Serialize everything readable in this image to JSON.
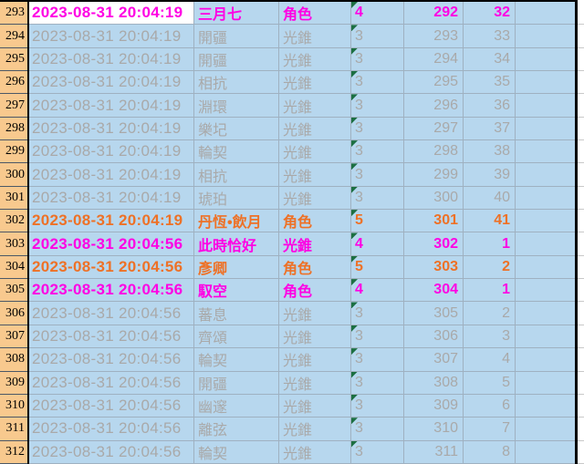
{
  "colors": {
    "cell_background": "#b7d7ee",
    "row_header_background": "#f8c98e",
    "gridline": "#9fb1c1",
    "text_gray": "#a9a9a9",
    "text_magenta_4star": "#ff00e4",
    "text_orange_5star": "#ee7126",
    "note_triangle_green": "#1c6f42",
    "active_cell_background": "#ffffff",
    "border_black": "#000000"
  },
  "table": {
    "rows": [
      {
        "row_number": "293",
        "timestamp": "2023-08-31 20:04:19",
        "name": "三月七",
        "category": "角色",
        "rarity": "4",
        "pull_no": "292",
        "pity": "32",
        "style": "magenta",
        "active_ts": true
      },
      {
        "row_number": "294",
        "timestamp": "2023-08-31 20:04:19",
        "name": "開疆",
        "category": "光錐",
        "rarity": "3",
        "pull_no": "293",
        "pity": "33",
        "style": "gray",
        "active_ts": false
      },
      {
        "row_number": "295",
        "timestamp": "2023-08-31 20:04:19",
        "name": "開疆",
        "category": "光錐",
        "rarity": "3",
        "pull_no": "294",
        "pity": "34",
        "style": "gray",
        "active_ts": false
      },
      {
        "row_number": "296",
        "timestamp": "2023-08-31 20:04:19",
        "name": "相抗",
        "category": "光錐",
        "rarity": "3",
        "pull_no": "295",
        "pity": "35",
        "style": "gray",
        "active_ts": false
      },
      {
        "row_number": "297",
        "timestamp": "2023-08-31 20:04:19",
        "name": "淵環",
        "category": "光錐",
        "rarity": "3",
        "pull_no": "296",
        "pity": "36",
        "style": "gray",
        "active_ts": false
      },
      {
        "row_number": "298",
        "timestamp": "2023-08-31 20:04:19",
        "name": "樂圮",
        "category": "光錐",
        "rarity": "3",
        "pull_no": "297",
        "pity": "37",
        "style": "gray",
        "active_ts": false
      },
      {
        "row_number": "299",
        "timestamp": "2023-08-31 20:04:19",
        "name": "輪契",
        "category": "光錐",
        "rarity": "3",
        "pull_no": "298",
        "pity": "38",
        "style": "gray",
        "active_ts": false
      },
      {
        "row_number": "300",
        "timestamp": "2023-08-31 20:04:19",
        "name": "相抗",
        "category": "光錐",
        "rarity": "3",
        "pull_no": "299",
        "pity": "39",
        "style": "gray",
        "active_ts": false
      },
      {
        "row_number": "301",
        "timestamp": "2023-08-31 20:04:19",
        "name": "琥珀",
        "category": "光錐",
        "rarity": "3",
        "pull_no": "300",
        "pity": "40",
        "style": "gray",
        "active_ts": false
      },
      {
        "row_number": "302",
        "timestamp": "2023-08-31 20:04:19",
        "name": "丹恆•飲月",
        "category": "角色",
        "rarity": "5",
        "pull_no": "301",
        "pity": "41",
        "style": "orange",
        "active_ts": false
      },
      {
        "row_number": "303",
        "timestamp": "2023-08-31 20:04:56",
        "name": "此時恰好",
        "category": "光錐",
        "rarity": "4",
        "pull_no": "302",
        "pity": "1",
        "style": "magenta",
        "active_ts": false
      },
      {
        "row_number": "304",
        "timestamp": "2023-08-31 20:04:56",
        "name": "彥卿",
        "category": "角色",
        "rarity": "5",
        "pull_no": "303",
        "pity": "2",
        "style": "orange",
        "active_ts": false
      },
      {
        "row_number": "305",
        "timestamp": "2023-08-31 20:04:56",
        "name": "馭空",
        "category": "角色",
        "rarity": "4",
        "pull_no": "304",
        "pity": "1",
        "style": "magenta",
        "active_ts": false
      },
      {
        "row_number": "306",
        "timestamp": "2023-08-31 20:04:56",
        "name": "蕃息",
        "category": "光錐",
        "rarity": "3",
        "pull_no": "305",
        "pity": "2",
        "style": "gray",
        "active_ts": false
      },
      {
        "row_number": "307",
        "timestamp": "2023-08-31 20:04:56",
        "name": "齊頌",
        "category": "光錐",
        "rarity": "3",
        "pull_no": "306",
        "pity": "3",
        "style": "gray",
        "active_ts": false
      },
      {
        "row_number": "308",
        "timestamp": "2023-08-31 20:04:56",
        "name": "輪契",
        "category": "光錐",
        "rarity": "3",
        "pull_no": "307",
        "pity": "4",
        "style": "gray",
        "active_ts": false
      },
      {
        "row_number": "309",
        "timestamp": "2023-08-31 20:04:56",
        "name": "開疆",
        "category": "光錐",
        "rarity": "3",
        "pull_no": "308",
        "pity": "5",
        "style": "gray",
        "active_ts": false
      },
      {
        "row_number": "310",
        "timestamp": "2023-08-31 20:04:56",
        "name": "幽邃",
        "category": "光錐",
        "rarity": "3",
        "pull_no": "309",
        "pity": "6",
        "style": "gray",
        "active_ts": false
      },
      {
        "row_number": "311",
        "timestamp": "2023-08-31 20:04:56",
        "name": "離弦",
        "category": "光錐",
        "rarity": "3",
        "pull_no": "310",
        "pity": "7",
        "style": "gray",
        "active_ts": false
      },
      {
        "row_number": "312",
        "timestamp": "2023-08-31 20:04:56",
        "name": "輪契",
        "category": "光錐",
        "rarity": "3",
        "pull_no": "311",
        "pity": "8",
        "style": "gray",
        "active_ts": false
      }
    ]
  }
}
